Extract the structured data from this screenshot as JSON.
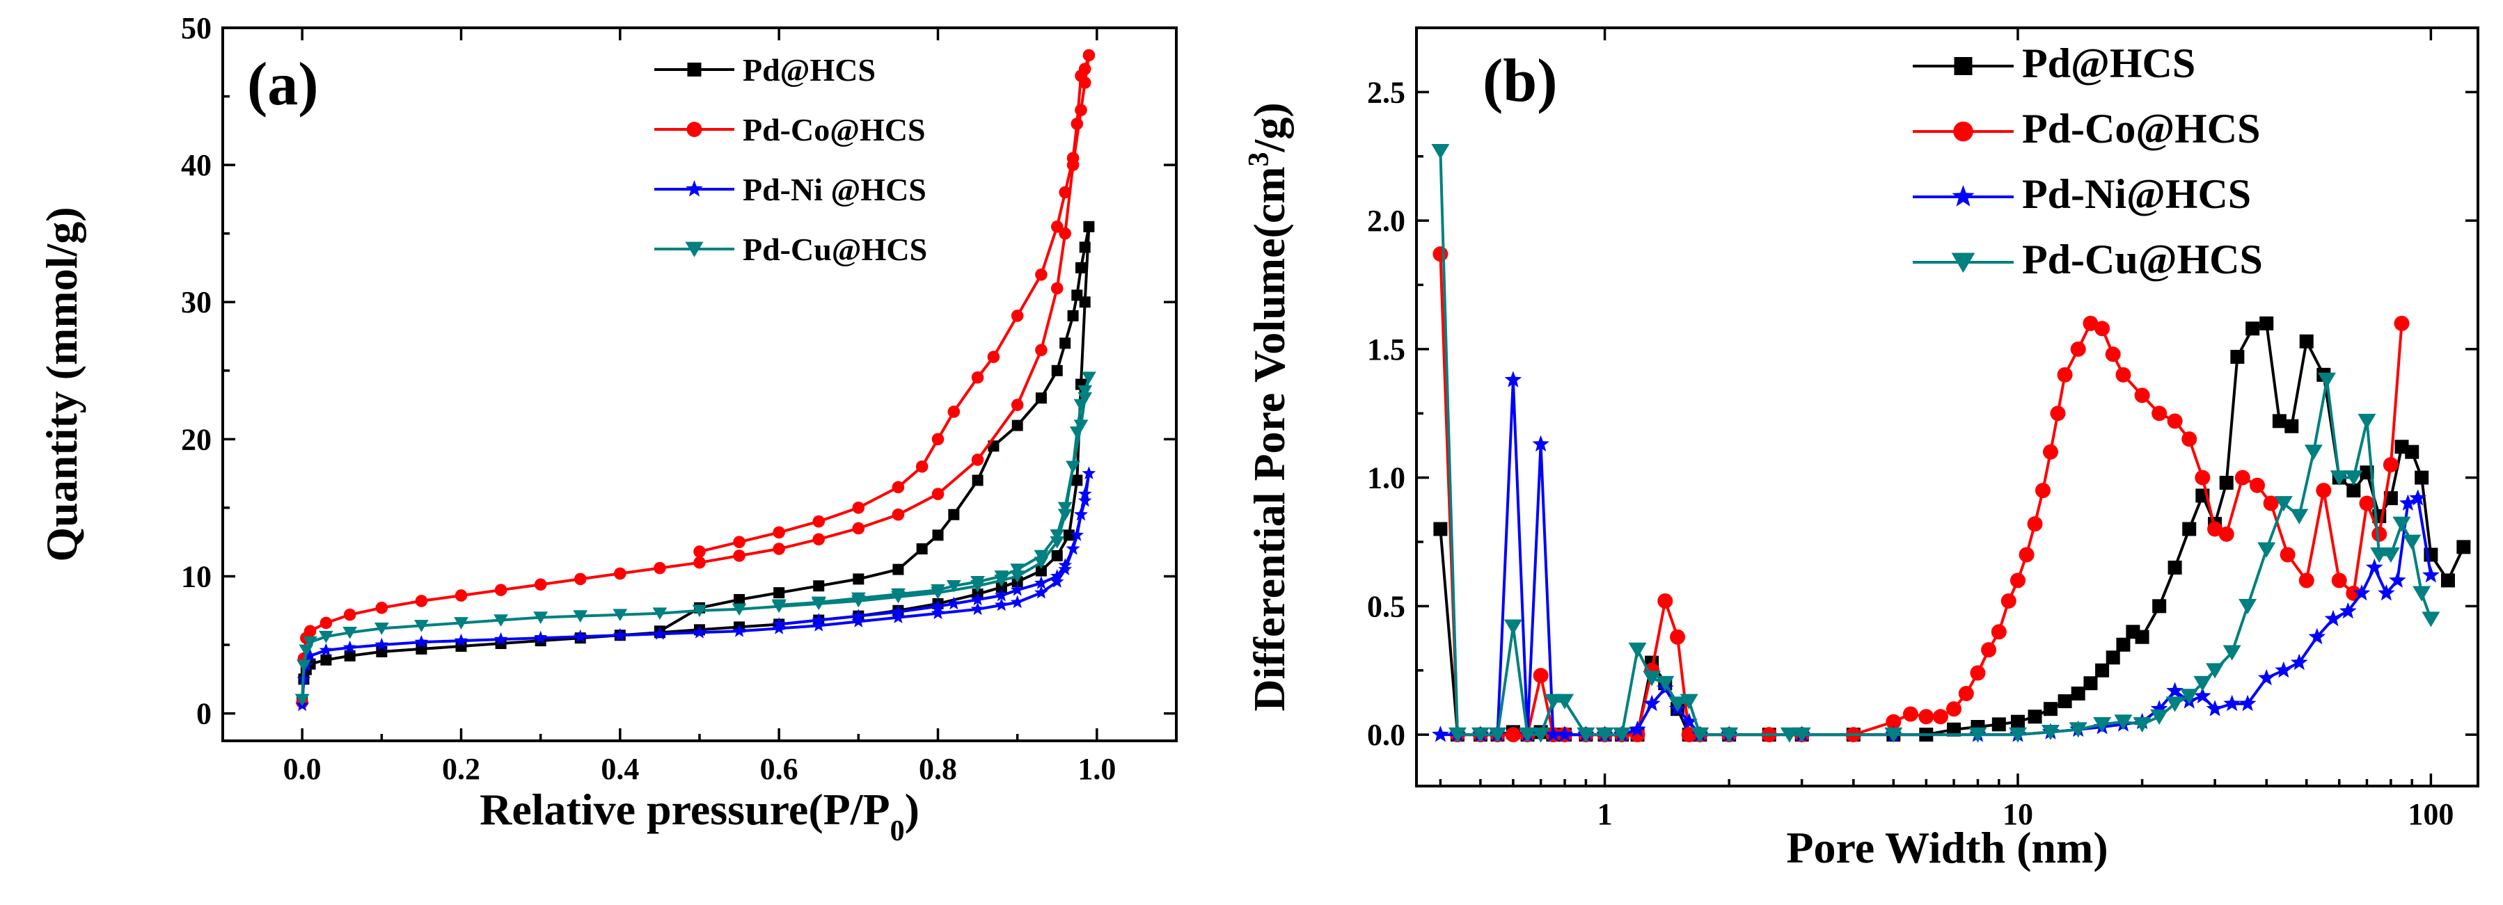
{
  "chart_data": [
    {
      "panel": "(a)",
      "type": "line",
      "xlabel": "Relative pressure(P/P",
      "xlabel_sub": "0",
      "xlabel_end": ")",
      "ylabel": "Quantity (mmol/g)",
      "xlim": [
        -0.1,
        1.1
      ],
      "ylim": [
        -2,
        50
      ],
      "xticks": [
        "0.0",
        "0.2",
        "0.4",
        "0.6",
        "0.8",
        "1.0"
      ],
      "xtick_values": [
        0.0,
        0.2,
        0.4,
        0.6,
        0.8,
        1.0
      ],
      "yticks": [
        "0",
        "10",
        "20",
        "30",
        "40",
        "50"
      ],
      "ytick_values": [
        0,
        10,
        20,
        30,
        40,
        50
      ],
      "legend_position": "top-right",
      "series": [
        {
          "name": "Pd@HCS",
          "color": "#000000",
          "marker": "square",
          "x": [
            0.0,
            0.002,
            0.005,
            0.01,
            0.03,
            0.06,
            0.1,
            0.15,
            0.2,
            0.25,
            0.3,
            0.35,
            0.4,
            0.45,
            0.5,
            0.55,
            0.6,
            0.65,
            0.7,
            0.75,
            0.8,
            0.85,
            0.88,
            0.9,
            0.93,
            0.95,
            0.965,
            0.975,
            0.98,
            0.985,
            0.99,
            0.985,
            0.98,
            0.975,
            0.97,
            0.96,
            0.95,
            0.93,
            0.9,
            0.87,
            0.85,
            0.82,
            0.8,
            0.78,
            0.75,
            0.7,
            0.65,
            0.6,
            0.55,
            0.5,
            0.45
          ],
          "y": [
            1.0,
            2.5,
            3.2,
            3.6,
            3.9,
            4.2,
            4.5,
            4.7,
            4.9,
            5.1,
            5.3,
            5.5,
            5.7,
            5.9,
            6.1,
            6.3,
            6.5,
            6.8,
            7.1,
            7.5,
            8.0,
            8.7,
            9.2,
            9.6,
            10.4,
            11.5,
            13.0,
            17.0,
            24.0,
            30.0,
            35.5,
            34.0,
            32.5,
            30.5,
            29.0,
            27.0,
            25.0,
            23.0,
            21.0,
            19.5,
            17.0,
            14.5,
            13.0,
            12.0,
            10.5,
            9.8,
            9.3,
            8.8,
            8.3,
            7.7,
            6.0
          ]
        },
        {
          "name": "Pd-Co@HCS",
          "color": "#ff0000",
          "marker": "circle",
          "x": [
            0.0,
            0.002,
            0.005,
            0.01,
            0.03,
            0.06,
            0.1,
            0.15,
            0.2,
            0.25,
            0.3,
            0.35,
            0.4,
            0.45,
            0.5,
            0.55,
            0.6,
            0.65,
            0.7,
            0.75,
            0.8,
            0.85,
            0.9,
            0.93,
            0.95,
            0.96,
            0.97,
            0.98,
            0.985,
            0.99,
            0.985,
            0.98,
            0.975,
            0.97,
            0.96,
            0.95,
            0.93,
            0.9,
            0.87,
            0.85,
            0.82,
            0.8,
            0.78,
            0.75,
            0.7,
            0.65,
            0.6,
            0.55,
            0.5
          ],
          "y": [
            0.8,
            4.0,
            5.5,
            6.0,
            6.6,
            7.2,
            7.7,
            8.2,
            8.6,
            9.0,
            9.4,
            9.8,
            10.2,
            10.6,
            11.0,
            11.5,
            12.0,
            12.7,
            13.5,
            14.5,
            16.0,
            18.5,
            22.5,
            26.5,
            31.0,
            35.0,
            40.0,
            44.0,
            46.0,
            48.0,
            47.0,
            46.5,
            43.0,
            40.5,
            38.0,
            35.5,
            32.0,
            29.0,
            26.0,
            24.5,
            22.0,
            20.0,
            18.0,
            16.5,
            15.0,
            14.0,
            13.2,
            12.5,
            11.8
          ]
        },
        {
          "name": "Pd-Ni @HCS",
          "color": "#0000ff",
          "marker": "star",
          "x": [
            0.0,
            0.002,
            0.005,
            0.01,
            0.03,
            0.06,
            0.1,
            0.15,
            0.2,
            0.25,
            0.3,
            0.35,
            0.4,
            0.45,
            0.5,
            0.55,
            0.6,
            0.65,
            0.7,
            0.75,
            0.8,
            0.85,
            0.88,
            0.9,
            0.93,
            0.95,
            0.96,
            0.97,
            0.975,
            0.98,
            0.985,
            0.99,
            0.985,
            0.98,
            0.97,
            0.96,
            0.95,
            0.93,
            0.9,
            0.88,
            0.85,
            0.82,
            0.8,
            0.75,
            0.7,
            0.65,
            0.6
          ],
          "y": [
            0.6,
            2.5,
            3.5,
            4.2,
            4.6,
            4.8,
            5.0,
            5.2,
            5.3,
            5.4,
            5.5,
            5.6,
            5.7,
            5.8,
            5.9,
            6.0,
            6.2,
            6.4,
            6.7,
            7.0,
            7.3,
            7.6,
            7.9,
            8.1,
            8.8,
            9.6,
            10.5,
            12.0,
            13.0,
            14.5,
            15.5,
            17.5,
            16.0,
            14.5,
            12.0,
            10.8,
            10.0,
            9.5,
            9.0,
            8.6,
            8.3,
            8.0,
            7.8,
            7.4,
            7.1,
            6.8,
            6.5
          ]
        },
        {
          "name": "Pd-Cu@HCS",
          "color": "#008080",
          "marker": "triangle-down",
          "x": [
            0.0,
            0.002,
            0.005,
            0.01,
            0.03,
            0.06,
            0.1,
            0.15,
            0.2,
            0.25,
            0.3,
            0.35,
            0.4,
            0.45,
            0.5,
            0.55,
            0.6,
            0.65,
            0.7,
            0.75,
            0.8,
            0.85,
            0.88,
            0.9,
            0.93,
            0.95,
            0.96,
            0.97,
            0.975,
            0.98,
            0.985,
            0.99,
            0.985,
            0.98,
            0.97,
            0.96,
            0.95,
            0.93,
            0.9,
            0.88,
            0.85,
            0.82,
            0.8,
            0.75,
            0.7,
            0.65,
            0.6
          ],
          "y": [
            1.0,
            3.5,
            4.6,
            5.2,
            5.6,
            5.9,
            6.2,
            6.4,
            6.6,
            6.8,
            7.0,
            7.1,
            7.2,
            7.3,
            7.5,
            7.6,
            7.8,
            8.0,
            8.2,
            8.5,
            8.8,
            9.3,
            9.7,
            10.0,
            11.0,
            12.5,
            14.5,
            18.0,
            20.5,
            22.5,
            23.5,
            24.5,
            23.0,
            21.0,
            18.0,
            15.0,
            13.0,
            11.5,
            10.5,
            10.0,
            9.6,
            9.3,
            9.0,
            8.7,
            8.4,
            8.1,
            7.9
          ]
        }
      ]
    },
    {
      "panel": "(b)",
      "type": "line",
      "xscale": "log",
      "xlabel": "Pore Width (nm)",
      "ylabel": "Differential Pore Volume(cm",
      "ylabel_sup": "3",
      "ylabel_end": "/g)",
      "xlim": [
        0.35,
        130
      ],
      "ylim": [
        -0.2,
        2.75
      ],
      "xticks": [
        "1",
        "10",
        "100"
      ],
      "xtick_values": [
        1,
        10,
        100
      ],
      "yticks": [
        "0.0",
        "0.5",
        "1.0",
        "1.5",
        "2.0",
        "2.5"
      ],
      "ytick_values": [
        0.0,
        0.5,
        1.0,
        1.5,
        2.0,
        2.5
      ],
      "legend_position": "top-right",
      "series": [
        {
          "name": "Pd@HCS",
          "color": "#000000",
          "marker": "square",
          "x": [
            0.4,
            0.44,
            0.5,
            0.55,
            0.6,
            0.65,
            0.7,
            0.75,
            0.8,
            0.9,
            1.0,
            1.1,
            1.2,
            1.3,
            1.4,
            1.5,
            1.6,
            1.7,
            2.0,
            2.5,
            3.0,
            4.0,
            5.0,
            6.0,
            7.0,
            8.0,
            9.0,
            10.0,
            11.0,
            12.0,
            13.0,
            14.0,
            15.0,
            16.0,
            17.0,
            18.0,
            19.0,
            20.0,
            22.0,
            24.0,
            26.0,
            28.0,
            30.0,
            32.0,
            34.0,
            37.0,
            40.0,
            43.0,
            46.0,
            50.0,
            55.0,
            60.0,
            65.0,
            70.0,
            75.0,
            80.0,
            85.0,
            90.0,
            95.0,
            100.0,
            110.0,
            120.0
          ],
          "y": [
            0.8,
            0.0,
            0.0,
            0.0,
            0.01,
            0.0,
            0.01,
            0.0,
            0.0,
            0.0,
            0.0,
            0.0,
            0.0,
            0.28,
            0.2,
            0.1,
            0.0,
            0.0,
            0.0,
            0.0,
            0.0,
            0.0,
            0.0,
            0.0,
            0.02,
            0.03,
            0.04,
            0.05,
            0.07,
            0.1,
            0.13,
            0.16,
            0.2,
            0.25,
            0.3,
            0.35,
            0.4,
            0.38,
            0.5,
            0.65,
            0.8,
            0.93,
            0.82,
            0.98,
            1.47,
            1.58,
            1.6,
            1.22,
            1.2,
            1.53,
            1.4,
            1.0,
            0.95,
            1.02,
            0.85,
            0.92,
            1.12,
            1.1,
            1.0,
            0.7,
            0.6,
            0.73
          ]
        },
        {
          "name": "Pd-Co@HCS",
          "color": "#ff0000",
          "marker": "circle",
          "x": [
            0.4,
            0.44,
            0.5,
            0.55,
            0.6,
            0.65,
            0.7,
            0.75,
            0.8,
            0.9,
            1.0,
            1.1,
            1.2,
            1.3,
            1.4,
            1.5,
            1.6,
            1.7,
            2.0,
            2.5,
            3.0,
            4.0,
            5.0,
            5.5,
            6.0,
            6.5,
            7.0,
            7.5,
            8.0,
            8.5,
            9.0,
            9.5,
            10.0,
            10.5,
            11.0,
            11.5,
            12.0,
            12.5,
            13.0,
            14.0,
            15.0,
            16.0,
            17.0,
            18.0,
            20.0,
            22.0,
            24.0,
            26.0,
            28.0,
            30.0,
            32.0,
            35.0,
            38.0,
            41.0,
            45.0,
            50.0,
            55.0,
            60.0,
            65.0,
            70.0,
            75.0,
            80.0,
            85.0
          ],
          "y": [
            1.87,
            0.0,
            0.0,
            0.0,
            0.0,
            0.0,
            0.23,
            0.0,
            0.0,
            0.0,
            0.0,
            0.0,
            0.0,
            0.25,
            0.52,
            0.38,
            0.0,
            0.0,
            0.0,
            0.0,
            0.0,
            0.0,
            0.05,
            0.08,
            0.07,
            0.07,
            0.1,
            0.16,
            0.24,
            0.33,
            0.4,
            0.52,
            0.6,
            0.7,
            0.82,
            0.95,
            1.1,
            1.25,
            1.4,
            1.5,
            1.6,
            1.58,
            1.48,
            1.4,
            1.32,
            1.25,
            1.22,
            1.15,
            1.0,
            0.8,
            0.78,
            1.0,
            0.97,
            0.9,
            0.7,
            0.6,
            0.95,
            0.6,
            0.55,
            0.9,
            0.78,
            1.05,
            1.6
          ]
        },
        {
          "name": "Pd-Ni@HCS",
          "color": "#0000ff",
          "marker": "star",
          "x": [
            0.4,
            0.44,
            0.5,
            0.55,
            0.6,
            0.65,
            0.7,
            0.75,
            0.8,
            0.9,
            1.0,
            1.1,
            1.2,
            1.3,
            1.4,
            1.5,
            1.6,
            1.7,
            2.0,
            3.0,
            5.0,
            8.0,
            10.0,
            12.0,
            14.0,
            16.0,
            18.0,
            20.0,
            22.0,
            24.0,
            26.0,
            28.0,
            30.0,
            33.0,
            36.0,
            40.0,
            44.0,
            48.0,
            53.0,
            58.0,
            63.0,
            68.0,
            73.0,
            78.0,
            83.0,
            88.0,
            93.0,
            100.0
          ],
          "y": [
            0.0,
            0.0,
            0.0,
            0.0,
            1.38,
            0.0,
            1.13,
            0.0,
            0.0,
            0.0,
            0.0,
            0.0,
            0.02,
            0.12,
            0.18,
            0.1,
            0.05,
            0.0,
            0.0,
            0.0,
            0.0,
            0.0,
            0.0,
            0.01,
            0.02,
            0.03,
            0.04,
            0.05,
            0.1,
            0.17,
            0.13,
            0.15,
            0.1,
            0.12,
            0.12,
            0.22,
            0.25,
            0.28,
            0.38,
            0.45,
            0.48,
            0.55,
            0.65,
            0.55,
            0.6,
            0.9,
            0.92,
            0.62
          ]
        },
        {
          "name": "Pd-Cu@HCS",
          "color": "#008080",
          "marker": "triangle-down",
          "x": [
            0.4,
            0.44,
            0.5,
            0.55,
            0.6,
            0.65,
            0.7,
            0.75,
            0.8,
            0.9,
            1.0,
            1.1,
            1.2,
            1.3,
            1.4,
            1.5,
            1.6,
            1.7,
            2.0,
            2.8,
            3.0,
            5.0,
            8.0,
            10.0,
            12.0,
            14.0,
            16.0,
            18.0,
            20.0,
            22.0,
            24.0,
            26.0,
            28.0,
            30.0,
            33.0,
            36.0,
            40.0,
            44.0,
            48.0,
            52.0,
            56.0,
            60.0,
            65.0,
            70.0,
            75.0,
            80.0,
            85.0,
            90.0,
            95.0,
            100.0
          ],
          "y": [
            2.27,
            0.0,
            0.0,
            0.0,
            0.42,
            0.0,
            0.0,
            0.13,
            0.13,
            0.0,
            0.0,
            0.0,
            0.33,
            0.22,
            0.2,
            0.12,
            0.13,
            0.0,
            0.0,
            0.0,
            0.0,
            0.0,
            0.0,
            0.0,
            0.01,
            0.02,
            0.04,
            0.05,
            0.04,
            0.07,
            0.12,
            0.15,
            0.2,
            0.25,
            0.32,
            0.5,
            0.72,
            0.9,
            0.85,
            1.1,
            1.38,
            1.0,
            1.0,
            1.22,
            0.7,
            0.7,
            0.82,
            0.75,
            0.55,
            0.45
          ]
        }
      ]
    }
  ]
}
